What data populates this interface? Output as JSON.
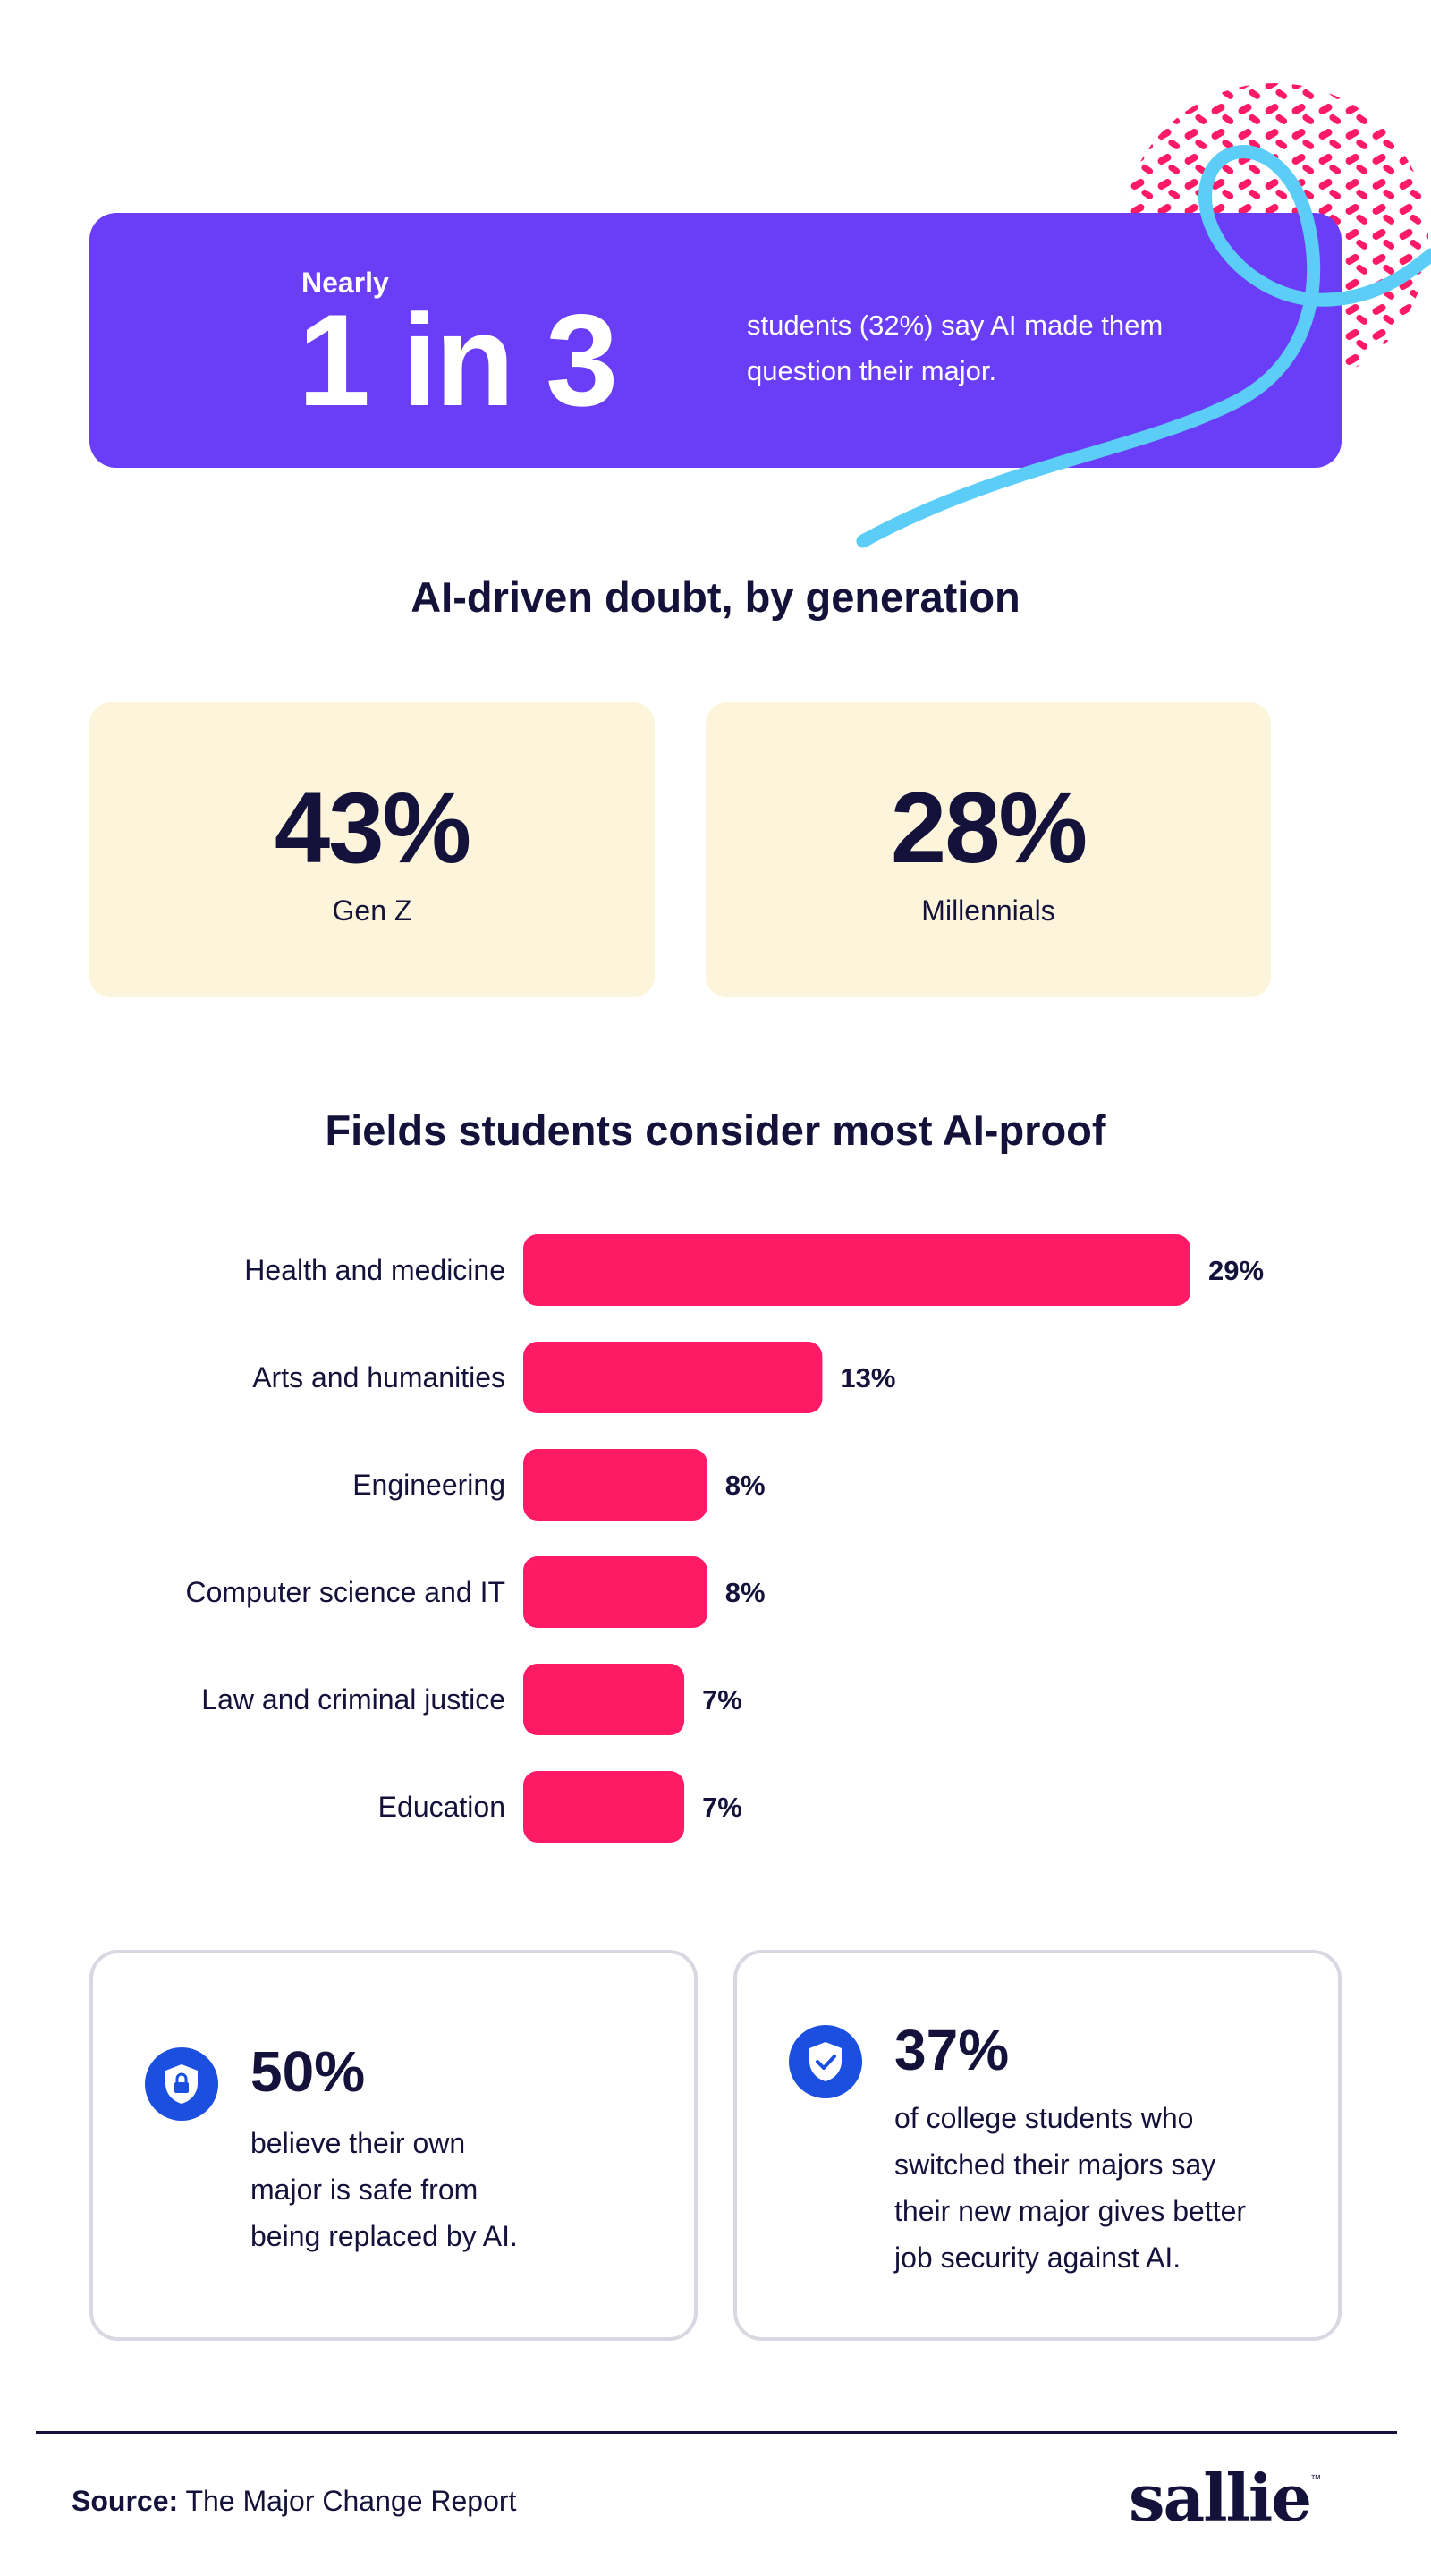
{
  "hero": {
    "eyebrow": "Nearly",
    "big": "1 in 3",
    "text": "students (32%) say AI made them question their major."
  },
  "generation": {
    "title": "AI-driven doubt, by generation",
    "cards": [
      {
        "value": "43%",
        "label": "Gen Z"
      },
      {
        "value": "28%",
        "label": "Millennials"
      }
    ]
  },
  "fields": {
    "title": "Fields students consider most AI-proof"
  },
  "chart_data": {
    "type": "bar",
    "orientation": "horizontal",
    "title": "Fields students consider most AI-proof",
    "categories": [
      "Health and medicine",
      "Arts and humanities",
      "Engineering",
      "Computer science and IT",
      "Law and criminal justice",
      "Education"
    ],
    "values": [
      29,
      13,
      8,
      8,
      7,
      7
    ],
    "value_labels": [
      "29%",
      "13%",
      "8%",
      "8%",
      "7%",
      "7%"
    ],
    "xlim": [
      0,
      29
    ],
    "grid": false,
    "legend": "none",
    "bar_color": "#ff1a66"
  },
  "stats": [
    {
      "value": "50%",
      "text_lines": [
        "believe their own",
        "major is safe from",
        "being replaced by AI."
      ],
      "icon": "lock-shield-icon"
    },
    {
      "value": "37%",
      "text_lines": [
        "of college students who",
        "switched their majors say",
        "their new major gives better",
        "job security against AI."
      ],
      "icon": "check-shield-icon"
    }
  ],
  "footer": {
    "source_label": "Source:",
    "source_text": " The Major Change Report",
    "logo": "sallie",
    "logo_mark": "™"
  },
  "colors": {
    "hero_bg": "#6a3df7",
    "card_bg": "#fdf5db",
    "accent_pink": "#ff1a66",
    "accent_cyan": "#5ccdf7",
    "icon_blue": "#1a4fe0",
    "ink": "#14123a"
  }
}
